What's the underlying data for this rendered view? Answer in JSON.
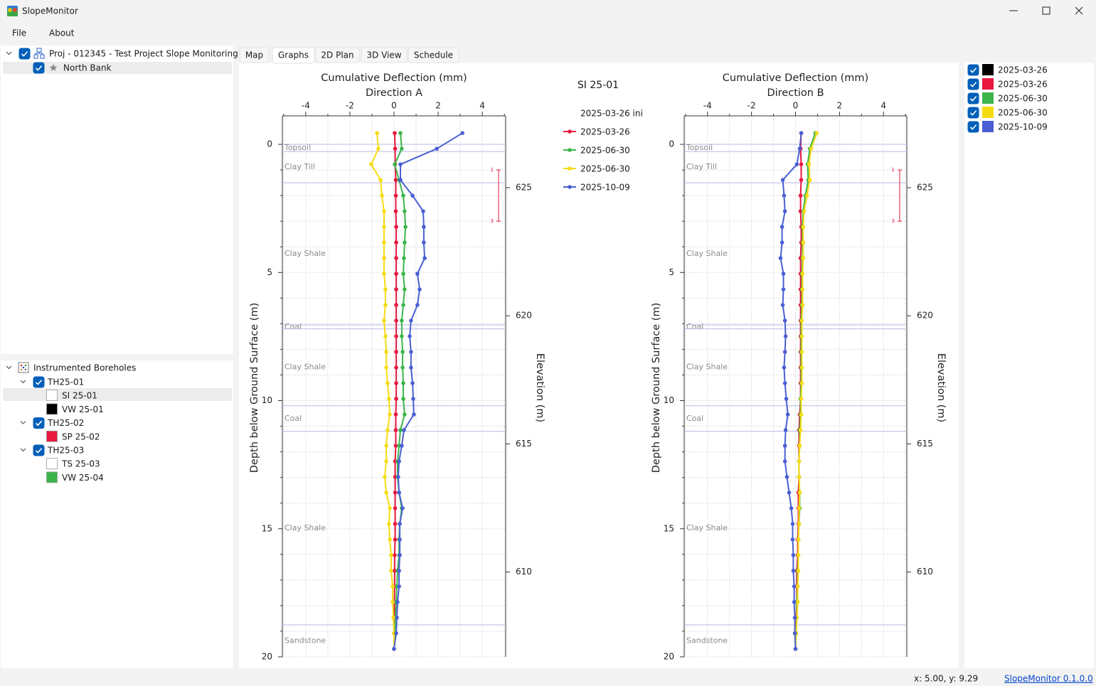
{
  "window": {
    "title": "SlopeMonitor",
    "menu": [
      "File",
      "About"
    ]
  },
  "project_tree": {
    "label": "Proj - 012345 - Test Project Slope Monitoring",
    "checked": true,
    "children": [
      {
        "label": "North Bank",
        "checked": true
      }
    ]
  },
  "borehole_tree": {
    "label": "Instrumented Boreholes",
    "boreholes": [
      {
        "label": "TH25-01",
        "checked": true,
        "instruments": [
          {
            "label": "SI 25-01",
            "color": "#ffffff"
          },
          {
            "label": "VW 25-01",
            "color": "#000000"
          }
        ]
      },
      {
        "label": "TH25-02",
        "checked": true,
        "instruments": [
          {
            "label": "SP 25-02",
            "color": "#e8173f"
          }
        ]
      },
      {
        "label": "TH25-03",
        "checked": true,
        "instruments": [
          {
            "label": "TS 25-03",
            "color": "#ffffff"
          },
          {
            "label": "VW 25-04",
            "color": "#3cb44b"
          }
        ]
      }
    ]
  },
  "tabs": {
    "items": [
      "Map",
      "Graphs",
      "2D Plan",
      "3D View",
      "Schedule"
    ],
    "active": 1
  },
  "instrument": "SI 25-01",
  "chart_data": [
    {
      "type": "line",
      "title": "Cumulative Deflection (mm)",
      "subtitle": "Direction A",
      "y_label": "Depth below Ground Surface (m)",
      "y2_label": "Elevation (m)",
      "legend": true,
      "legend_title": "2025-03-26 ini",
      "depth": [
        -0.44,
        0.17,
        0.78,
        1.39,
        2.0,
        2.61,
        3.22,
        3.83,
        4.44,
        5.05,
        5.66,
        6.27,
        6.88,
        7.49,
        8.1,
        8.71,
        9.32,
        9.93,
        10.54,
        11.15,
        11.76,
        12.37,
        12.98,
        13.59,
        14.2,
        14.81,
        15.42,
        16.03,
        16.64,
        17.25,
        17.86,
        18.47,
        19.08,
        19.69
      ],
      "xlim": [
        -5.06,
        5.06
      ],
      "xticks": [
        -4,
        -2,
        0,
        2,
        4
      ],
      "minor_xticks": [
        -5,
        -3,
        -1,
        1,
        3,
        5
      ],
      "ylim": [
        -1,
        20
      ],
      "yticks": [
        0,
        5,
        10,
        15,
        20
      ],
      "minor_yticks": [
        1,
        2,
        3,
        4,
        6,
        7,
        8,
        9,
        11,
        12,
        13,
        14,
        16,
        17,
        18,
        19
      ],
      "y2lim": [
        627.69,
        606.69
      ],
      "y2ticks": [
        625,
        620,
        615,
        610
      ],
      "grid": true,
      "layers": [
        {
          "name": "Topsoil",
          "top": 0,
          "bottom": 0.28
        },
        {
          "name": "Clay Till",
          "top": 0.28,
          "bottom": 1.5
        },
        {
          "name": "Clay Shale",
          "top": 1.5,
          "bottom": 7.05
        },
        {
          "name": "Coal",
          "top": 7.05,
          "bottom": 7.2
        },
        {
          "name": "Clay Shale",
          "top": 7.2,
          "bottom": 10.2
        },
        {
          "name": "Coal",
          "top": 10.2,
          "bottom": 11.2
        },
        {
          "name": "Clay Shale",
          "top": 11.2,
          "bottom": 18.75
        },
        {
          "name": "Sandstone",
          "top": 18.75,
          "bottom": 20
        }
      ],
      "interval": {
        "top": 1,
        "bottom": 3,
        "color": "#e8173f"
      },
      "series": [
        {
          "name": "2025-03-26",
          "color": "#e8173f",
          "values": [
            0.03,
            0.05,
            0.05,
            0.08,
            0.08,
            0.08,
            0.1,
            0.1,
            0.1,
            0.1,
            0.1,
            0.1,
            0.1,
            0.1,
            0.1,
            0.1,
            0.1,
            0.1,
            0.08,
            0.08,
            0.08,
            0.05,
            0.05,
            0.05,
            0.05,
            0.05,
            0.05,
            0.03,
            0.03,
            0.03,
            0.02,
            0.02,
            0,
            0
          ]
        },
        {
          "name": "2025-06-30",
          "color": "#3cb44b",
          "values": [
            0.29,
            0.35,
            0.03,
            0.23,
            0.42,
            0.48,
            0.52,
            0.48,
            0.45,
            0.42,
            0.48,
            0.42,
            0.35,
            0.35,
            0.39,
            0.39,
            0.42,
            0.42,
            0.48,
            0.29,
            0.23,
            0.16,
            0.16,
            0.23,
            0.35,
            0.26,
            0.23,
            0.23,
            0.16,
            0.13,
            0.1,
            0.06,
            0.03,
            0
          ]
        },
        {
          "name": "2025-06-30",
          "color": "#f5dc12",
          "values": [
            -0.77,
            -0.71,
            -1.03,
            -0.61,
            -0.55,
            -0.45,
            -0.45,
            -0.45,
            -0.45,
            -0.45,
            -0.39,
            -0.39,
            -0.45,
            -0.39,
            -0.35,
            -0.35,
            -0.29,
            -0.23,
            -0.19,
            -0.29,
            -0.35,
            -0.35,
            -0.42,
            -0.35,
            -0.19,
            -0.23,
            -0.19,
            -0.13,
            -0.13,
            -0.06,
            -0.06,
            -0.03,
            0,
            0
          ]
        },
        {
          "name": "2025-10-09",
          "color": "#4a5fd3",
          "values": [
            3.1,
            1.94,
            0.29,
            0.29,
            0.84,
            1.32,
            1.35,
            1.35,
            1.39,
            1.06,
            1.16,
            1.06,
            0.77,
            0.71,
            0.77,
            0.77,
            0.84,
            0.87,
            0.9,
            0.45,
            0.35,
            0.23,
            0.19,
            0.23,
            0.39,
            0.26,
            0.26,
            0.26,
            0.23,
            0.23,
            0.16,
            0.13,
            0.1,
            0
          ]
        }
      ]
    },
    {
      "type": "line",
      "title": "Cumulative Deflection (mm)",
      "subtitle": "Direction B",
      "y_label": "Depth below Ground Surface (m)",
      "y2_label": "Elevation (m)",
      "legend": false,
      "depth": [
        -0.44,
        0.17,
        0.78,
        1.39,
        2.0,
        2.61,
        3.22,
        3.83,
        4.44,
        5.05,
        5.66,
        6.27,
        6.88,
        7.49,
        8.1,
        8.71,
        9.32,
        9.93,
        10.54,
        11.15,
        11.76,
        12.37,
        12.98,
        13.59,
        14.2,
        14.81,
        15.42,
        16.03,
        16.64,
        17.25,
        17.86,
        18.47,
        19.08,
        19.69
      ],
      "xlim": [
        -5.06,
        5.06
      ],
      "xticks": [
        -4,
        -2,
        0,
        2,
        4
      ],
      "minor_xticks": [
        -5,
        -3,
        -1,
        1,
        3,
        5
      ],
      "ylim": [
        -1,
        20
      ],
      "yticks": [
        0,
        5,
        10,
        15,
        20
      ],
      "minor_yticks": [
        1,
        2,
        3,
        4,
        6,
        7,
        8,
        9,
        11,
        12,
        13,
        14,
        16,
        17,
        18,
        19
      ],
      "y2lim": [
        627.69,
        606.69
      ],
      "y2ticks": [
        625,
        620,
        615,
        610
      ],
      "grid": true,
      "layers": [
        {
          "name": "Topsoil",
          "top": 0,
          "bottom": 0.28
        },
        {
          "name": "Clay Till",
          "top": 0.28,
          "bottom": 1.5
        },
        {
          "name": "Clay Shale",
          "top": 1.5,
          "bottom": 7.05
        },
        {
          "name": "Coal",
          "top": 7.05,
          "bottom": 7.2
        },
        {
          "name": "Clay Shale",
          "top": 7.2,
          "bottom": 10.2
        },
        {
          "name": "Coal",
          "top": 10.2,
          "bottom": 11.2
        },
        {
          "name": "Clay Shale",
          "top": 11.2,
          "bottom": 18.75
        },
        {
          "name": "Sandstone",
          "top": 18.75,
          "bottom": 20
        }
      ],
      "interval": {
        "top": 1,
        "bottom": 3,
        "color": "#e8173f"
      },
      "series": [
        {
          "name": "2025-03-26",
          "color": "#e8173f",
          "values": [
            0.26,
            0.23,
            0.26,
            0.26,
            0.23,
            0.23,
            0.26,
            0.26,
            0.23,
            0.23,
            0.23,
            0.23,
            0.23,
            0.23,
            0.23,
            0.23,
            0.23,
            0.23,
            0.19,
            0.16,
            0.16,
            0.16,
            0.16,
            0.13,
            0.13,
            0.13,
            0.1,
            0.1,
            0.06,
            0.06,
            0.06,
            0.03,
            0.03,
            0
          ]
        },
        {
          "name": "2025-06-30",
          "color": "#3cb44b",
          "values": [
            0.9,
            0.65,
            0.55,
            0.58,
            0.45,
            0.35,
            0.32,
            0.32,
            0.32,
            0.29,
            0.29,
            0.29,
            0.26,
            0.26,
            0.26,
            0.26,
            0.26,
            0.23,
            0.23,
            0.19,
            0.19,
            0.16,
            0.16,
            0.19,
            0.19,
            0.16,
            0.13,
            0.13,
            0.1,
            0.1,
            0.06,
            0.06,
            0.03,
            0
          ]
        },
        {
          "name": "2025-06-30",
          "color": "#f5dc12",
          "values": [
            0.97,
            0.71,
            0.61,
            0.65,
            0.52,
            0.39,
            0.35,
            0.35,
            0.35,
            0.32,
            0.32,
            0.32,
            0.29,
            0.29,
            0.29,
            0.29,
            0.29,
            0.26,
            0.26,
            0.23,
            0.19,
            0.16,
            0.16,
            0.19,
            0.16,
            0.16,
            0.13,
            0.13,
            0.13,
            0.1,
            0.1,
            0.06,
            0.03,
            0
          ]
        },
        {
          "name": "2025-10-09",
          "color": "#4a5fd3",
          "values": [
            0.26,
            0.19,
            0.06,
            -0.58,
            -0.52,
            -0.48,
            -0.61,
            -0.61,
            -0.68,
            -0.55,
            -0.55,
            -0.58,
            -0.48,
            -0.45,
            -0.48,
            -0.52,
            -0.48,
            -0.42,
            -0.35,
            -0.45,
            -0.48,
            -0.48,
            -0.39,
            -0.29,
            -0.19,
            -0.13,
            -0.13,
            -0.1,
            -0.1,
            -0.06,
            -0.06,
            -0.03,
            -0.03,
            0
          ]
        }
      ]
    }
  ],
  "legend_panel": [
    {
      "label": "2025-03-26",
      "color": "#000000",
      "checked": true
    },
    {
      "label": "2025-03-26",
      "color": "#e8173f",
      "checked": true
    },
    {
      "label": "2025-06-30",
      "color": "#3cb44b",
      "checked": true
    },
    {
      "label": "2025-06-30",
      "color": "#f5dc12",
      "checked": true
    },
    {
      "label": "2025-10-09",
      "color": "#4a5fd3",
      "checked": true
    }
  ],
  "status": {
    "cursor": "x: 5.00, y: 9.29",
    "version": "SlopeMonitor 0.1.0.0"
  }
}
